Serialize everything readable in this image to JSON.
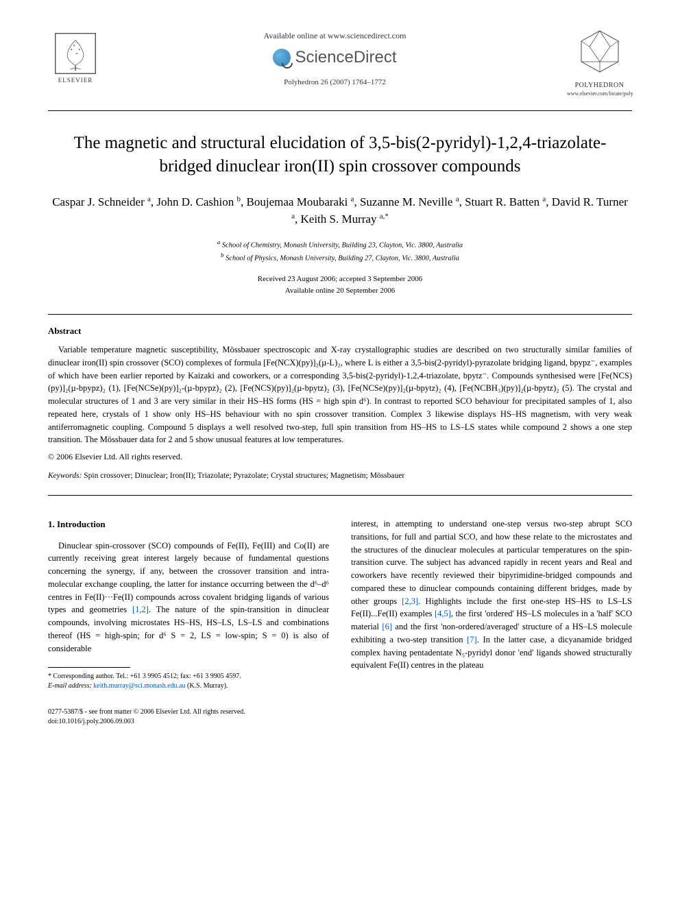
{
  "header": {
    "available_online": "Available online at www.sciencedirect.com",
    "sciencedirect": "ScienceDirect",
    "journal_ref": "Polyhedron 26 (2007) 1764–1772",
    "elsevier_label": "ELSEVIER",
    "polyhedron_label": "POLYHEDRON",
    "polyhedron_url": "www.elsevier.com/locate/poly"
  },
  "title": "The magnetic and structural elucidation of 3,5-bis(2-pyridyl)-1,2,4-triazolate-bridged dinuclear iron(II) spin crossover compounds",
  "authors_html": "Caspar J. Schneider <sup>a</sup>, John D. Cashion <sup>b</sup>, Boujemaa Moubaraki <sup>a</sup>, Suzanne M. Neville <sup>a</sup>, Stuart R. Batten <sup>a</sup>, David R. Turner <sup>a</sup>, Keith S. Murray <sup>a,*</sup>",
  "affiliations": {
    "a": "School of Chemistry, Monash University, Building 23, Clayton, Vic. 3800, Australia",
    "b": "School of Physics, Monash University, Building 27, Clayton, Vic. 3800, Australia"
  },
  "dates": {
    "received": "Received 23 August 2006; accepted 3 September 2006",
    "online": "Available online 20 September 2006"
  },
  "abstract": {
    "heading": "Abstract",
    "body": "Variable temperature magnetic susceptibility, Mössbauer spectroscopic and X-ray crystallographic studies are described on two structurally similar families of dinuclear iron(II) spin crossover (SCO) complexes of formula [Fe(NCX)(py)]₂(µ-L)₂, where L is either a 3,5-bis(2-pyridyl)-pyrazolate bridging ligand, bpypz⁻, examples of which have been earlier reported by Kaizaki and coworkers, or a corresponding 3,5-bis(2-pyridyl)-1,2,4-triazolate, bpytz⁻. Compounds synthesised were [Fe(NCS)(py)]₂(µ-bpypz)₂ (1), [Fe(NCSe)(py)]₂-(µ-bpypz)₂ (2), [Fe(NCS)(py)]₂(µ-bpytz)₂ (3), [Fe(NCSe)(py)]₂(µ-bpytz)₂ (4), [Fe(NCBH₃)(py)]₂(µ-bpytz)₂ (5). The crystal and molecular structures of 1 and 3 are very similar in their HS–HS forms (HS = high spin d⁶). In contrast to reported SCO behaviour for precipitated samples of 1, also repeated here, crystals of 1 show only HS–HS behaviour with no spin crossover transition. Complex 3 likewise displays HS–HS magnetism, with very weak antiferromagnetic coupling. Compound 5 displays a well resolved two-step, full spin transition from HS–HS to LS–LS states while compound 2 shows a one step transition. The Mössbauer data for 2 and 5 show unusual features at low temperatures.",
    "copyright": "© 2006 Elsevier Ltd. All rights reserved."
  },
  "keywords": {
    "label": "Keywords:",
    "text": "Spin crossover; Dinuclear; Iron(II); Triazolate; Pyrazolate; Crystal structures; Magnetism; Mössbauer"
  },
  "introduction": {
    "heading": "1. Introduction",
    "col1": "Dinuclear spin-crossover (SCO) compounds of Fe(II), Fe(III) and Co(II) are currently receiving great interest largely because of fundamental questions concerning the synergy, if any, between the crossover transition and intra-molecular exchange coupling, the latter for instance occurring between the d⁶–d⁶ centres in Fe(II)···Fe(II) compounds across covalent bridging ligands of various types and geometries [1,2]. The nature of the spin-transition in dinuclear compounds, involving microstates HS–HS, HS–LS, LS–LS and combinations thereof (HS = high-spin; for d⁶ S = 2, LS = low-spin; S = 0) is also of considerable",
    "col2": "interest, in attempting to understand one-step versus two-step abrupt SCO transitions, for full and partial SCO, and how these relate to the microstates and the structures of the dinuclear molecules at particular temperatures on the spin-transition curve. The subject has advanced rapidly in recent years and Real and coworkers have recently reviewed their bipyrimidine-bridged compounds and compared these to dinuclear compounds containing different bridges, made by other groups [2,3]. Highlights include the first one-step HS–HS to LS–LS Fe(II)...Fe(II) examples [4,5], the first 'ordered' HS–LS molecules in a 'half' SCO material [6] and the first 'non-ordered/averaged' structure of a HS–LS molecule exhibiting a two-step transition [7]. In the latter case, a dicyanamide bridged complex having pentadentate N₅-pyridyl donor 'end' ligands showed structurally equivalent Fe(II) centres in the plateau"
  },
  "footnote": {
    "corr": "* Corresponding author. Tel.: +61 3 9905 4512; fax: +61 3 9905 4597.",
    "email_label": "E-mail address:",
    "email": "keith.murray@sci.monash.edu.au",
    "email_suffix": "(K.S. Murray)."
  },
  "footer": {
    "line1": "0277-5387/$ - see front matter © 2006 Elsevier Ltd. All rights reserved.",
    "line2": "doi:10.1016/j.poly.2006.09.003"
  },
  "colors": {
    "link": "#0055cc",
    "text": "#000000",
    "bg": "#ffffff"
  }
}
